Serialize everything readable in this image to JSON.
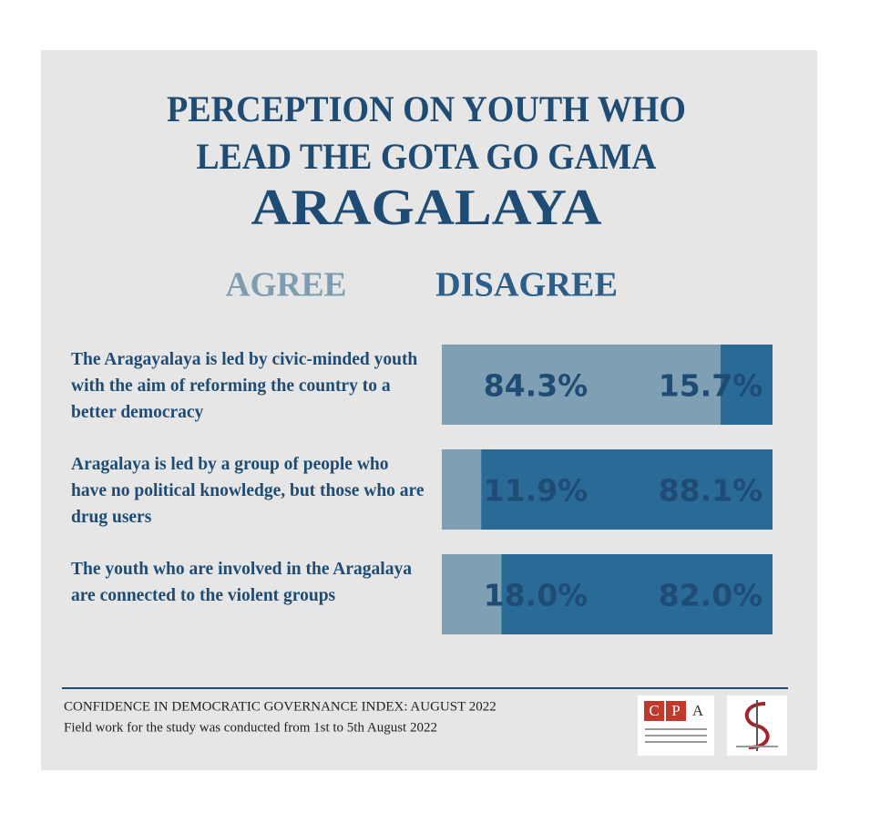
{
  "chart_data": {
    "type": "bar",
    "orientation": "horizontal",
    "stacked": true,
    "title": [
      "PERCEPTION ON YOUTH WHO",
      "LEAD THE GOTA GO GAMA"
    ],
    "subtitle": "ARAGALAYA",
    "categories": [
      "The Aragayalaya is led by civic-minded youth with the aim of reforming the country to a better democracy",
      "Aragalaya is led by a group of people who have no political knowledge, but those who are drug users",
      "The youth who are involved in the Aragalaya are connected to the violent groups"
    ],
    "series": [
      {
        "name": "AGREE",
        "color": "#7fa0b4",
        "values": [
          84.3,
          11.9,
          18.0
        ],
        "value_labels": [
          "84.3%",
          "11.9%",
          "18.0%"
        ]
      },
      {
        "name": "DISAGREE",
        "color": "#2a6a97",
        "values": [
          15.7,
          88.1,
          82.0
        ],
        "value_labels": [
          "15.7%",
          "88.1%",
          "82.0%"
        ]
      }
    ],
    "xlim": [
      0,
      100
    ]
  },
  "footer": {
    "lines": [
      "CONFIDENCE IN DEMOCRATIC GOVERNANCE INDEX: AUGUST 2022",
      "Field work for the study was conducted from 1st to 5th August 2022"
    ],
    "logo_letters": [
      "C",
      "P",
      "A"
    ]
  }
}
